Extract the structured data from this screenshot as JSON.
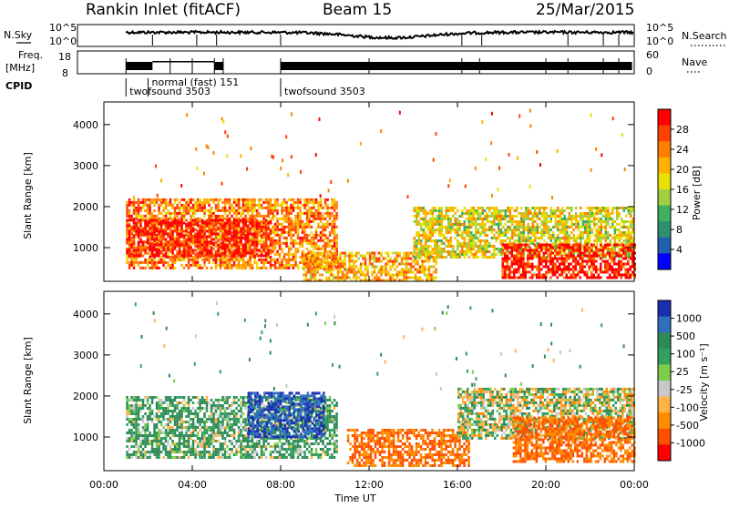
{
  "header": {
    "station": "Rankin Inlet (fitACF)",
    "beam": "Beam 15",
    "date": "25/Mar/2015"
  },
  "top_panels": {
    "nsky_label": "N.Sky",
    "nsearch_label": "N.Search",
    "noise_ticks": [
      "10^5",
      "10^0"
    ],
    "freq_label_1": "Freq.",
    "freq_label_2": "[MHz]",
    "freq_ticks": [
      "18",
      "8"
    ],
    "nave_label": "Nave",
    "nave_ticks": [
      "60",
      "0"
    ],
    "cpid_label": "CPID",
    "cpid_entries": [
      {
        "text": "twofsound 3503",
        "start_hour": 1.0
      },
      {
        "text": "normal (fast) 151",
        "start_hour": 2.0
      },
      {
        "text": "twofsound 3503",
        "start_hour": 8.0
      }
    ]
  },
  "power_panel": {
    "ylabel": "Slant Range [km]",
    "colorbar_label": "Power [dB]",
    "colorbar_ticks": [
      "28",
      "24",
      "20",
      "16",
      "12",
      "8",
      "4"
    ],
    "colorbar_colors": [
      "#ff0000",
      "#ff4000",
      "#ff8000",
      "#ffb000",
      "#e8e000",
      "#a0d040",
      "#40b060",
      "#2f8f70",
      "#1f60b0",
      "#0000ff"
    ]
  },
  "velocity_panel": {
    "ylabel": "Slant Range [km]",
    "colorbar_label": "Velocity [m s⁻¹]",
    "colorbar_ticks": [
      "1000",
      "500",
      "100",
      "25",
      "-25",
      "-100",
      "-500",
      "-1000"
    ],
    "colorbar_colors": [
      "#1a2fb0",
      "#2e6fc0",
      "#2e8b57",
      "#33a060",
      "#7ccd4a",
      "#c8c8c8",
      "#ffb347",
      "#ff8c00",
      "#ff5000",
      "#ff0000"
    ],
    "ground_scatter_color": "#c8c8c8"
  },
  "x_axis": {
    "label": "Time UT",
    "ticks": [
      "00:00",
      "04:00",
      "08:00",
      "12:00",
      "16:00",
      "20:00",
      "00:00"
    ]
  },
  "y_ticks": [
    "4000",
    "3000",
    "2000",
    "1000"
  ],
  "chart_data": {
    "type": "heatmap",
    "x_range_hours": [
      0,
      24
    ],
    "y_range_km": [
      180,
      4550
    ],
    "power_scatter_regions": [
      {
        "t0": 1.0,
        "t1": 10.5,
        "r0": 500,
        "r1": 2200,
        "power_db": 22
      },
      {
        "t0": 1.0,
        "t1": 7.5,
        "r0": 800,
        "r1": 1700,
        "power_db": 28
      },
      {
        "t0": 9.0,
        "t1": 15.0,
        "r0": 200,
        "r1": 900,
        "power_db": 20
      },
      {
        "t0": 14.0,
        "t1": 24.0,
        "r0": 800,
        "r1": 2000,
        "power_db": 16
      },
      {
        "t0": 18.0,
        "t1": 24.0,
        "r0": 300,
        "r1": 1100,
        "power_db": 28
      }
    ],
    "velocity_scatter_regions": [
      {
        "t0": 1.0,
        "t1": 10.5,
        "r0": 500,
        "r1": 2000,
        "velocity": 100
      },
      {
        "t0": 6.5,
        "t1": 10.0,
        "r0": 1000,
        "r1": 2100,
        "velocity": 1000
      },
      {
        "t0": 11.0,
        "t1": 16.5,
        "r0": 300,
        "r1": 1200,
        "velocity": -500
      },
      {
        "t0": 16.0,
        "t1": 24.0,
        "r0": 1000,
        "r1": 2200,
        "velocity": 0
      },
      {
        "t0": 18.5,
        "t1": 24.0,
        "r0": 400,
        "r1": 1500,
        "velocity": -500
      }
    ]
  }
}
